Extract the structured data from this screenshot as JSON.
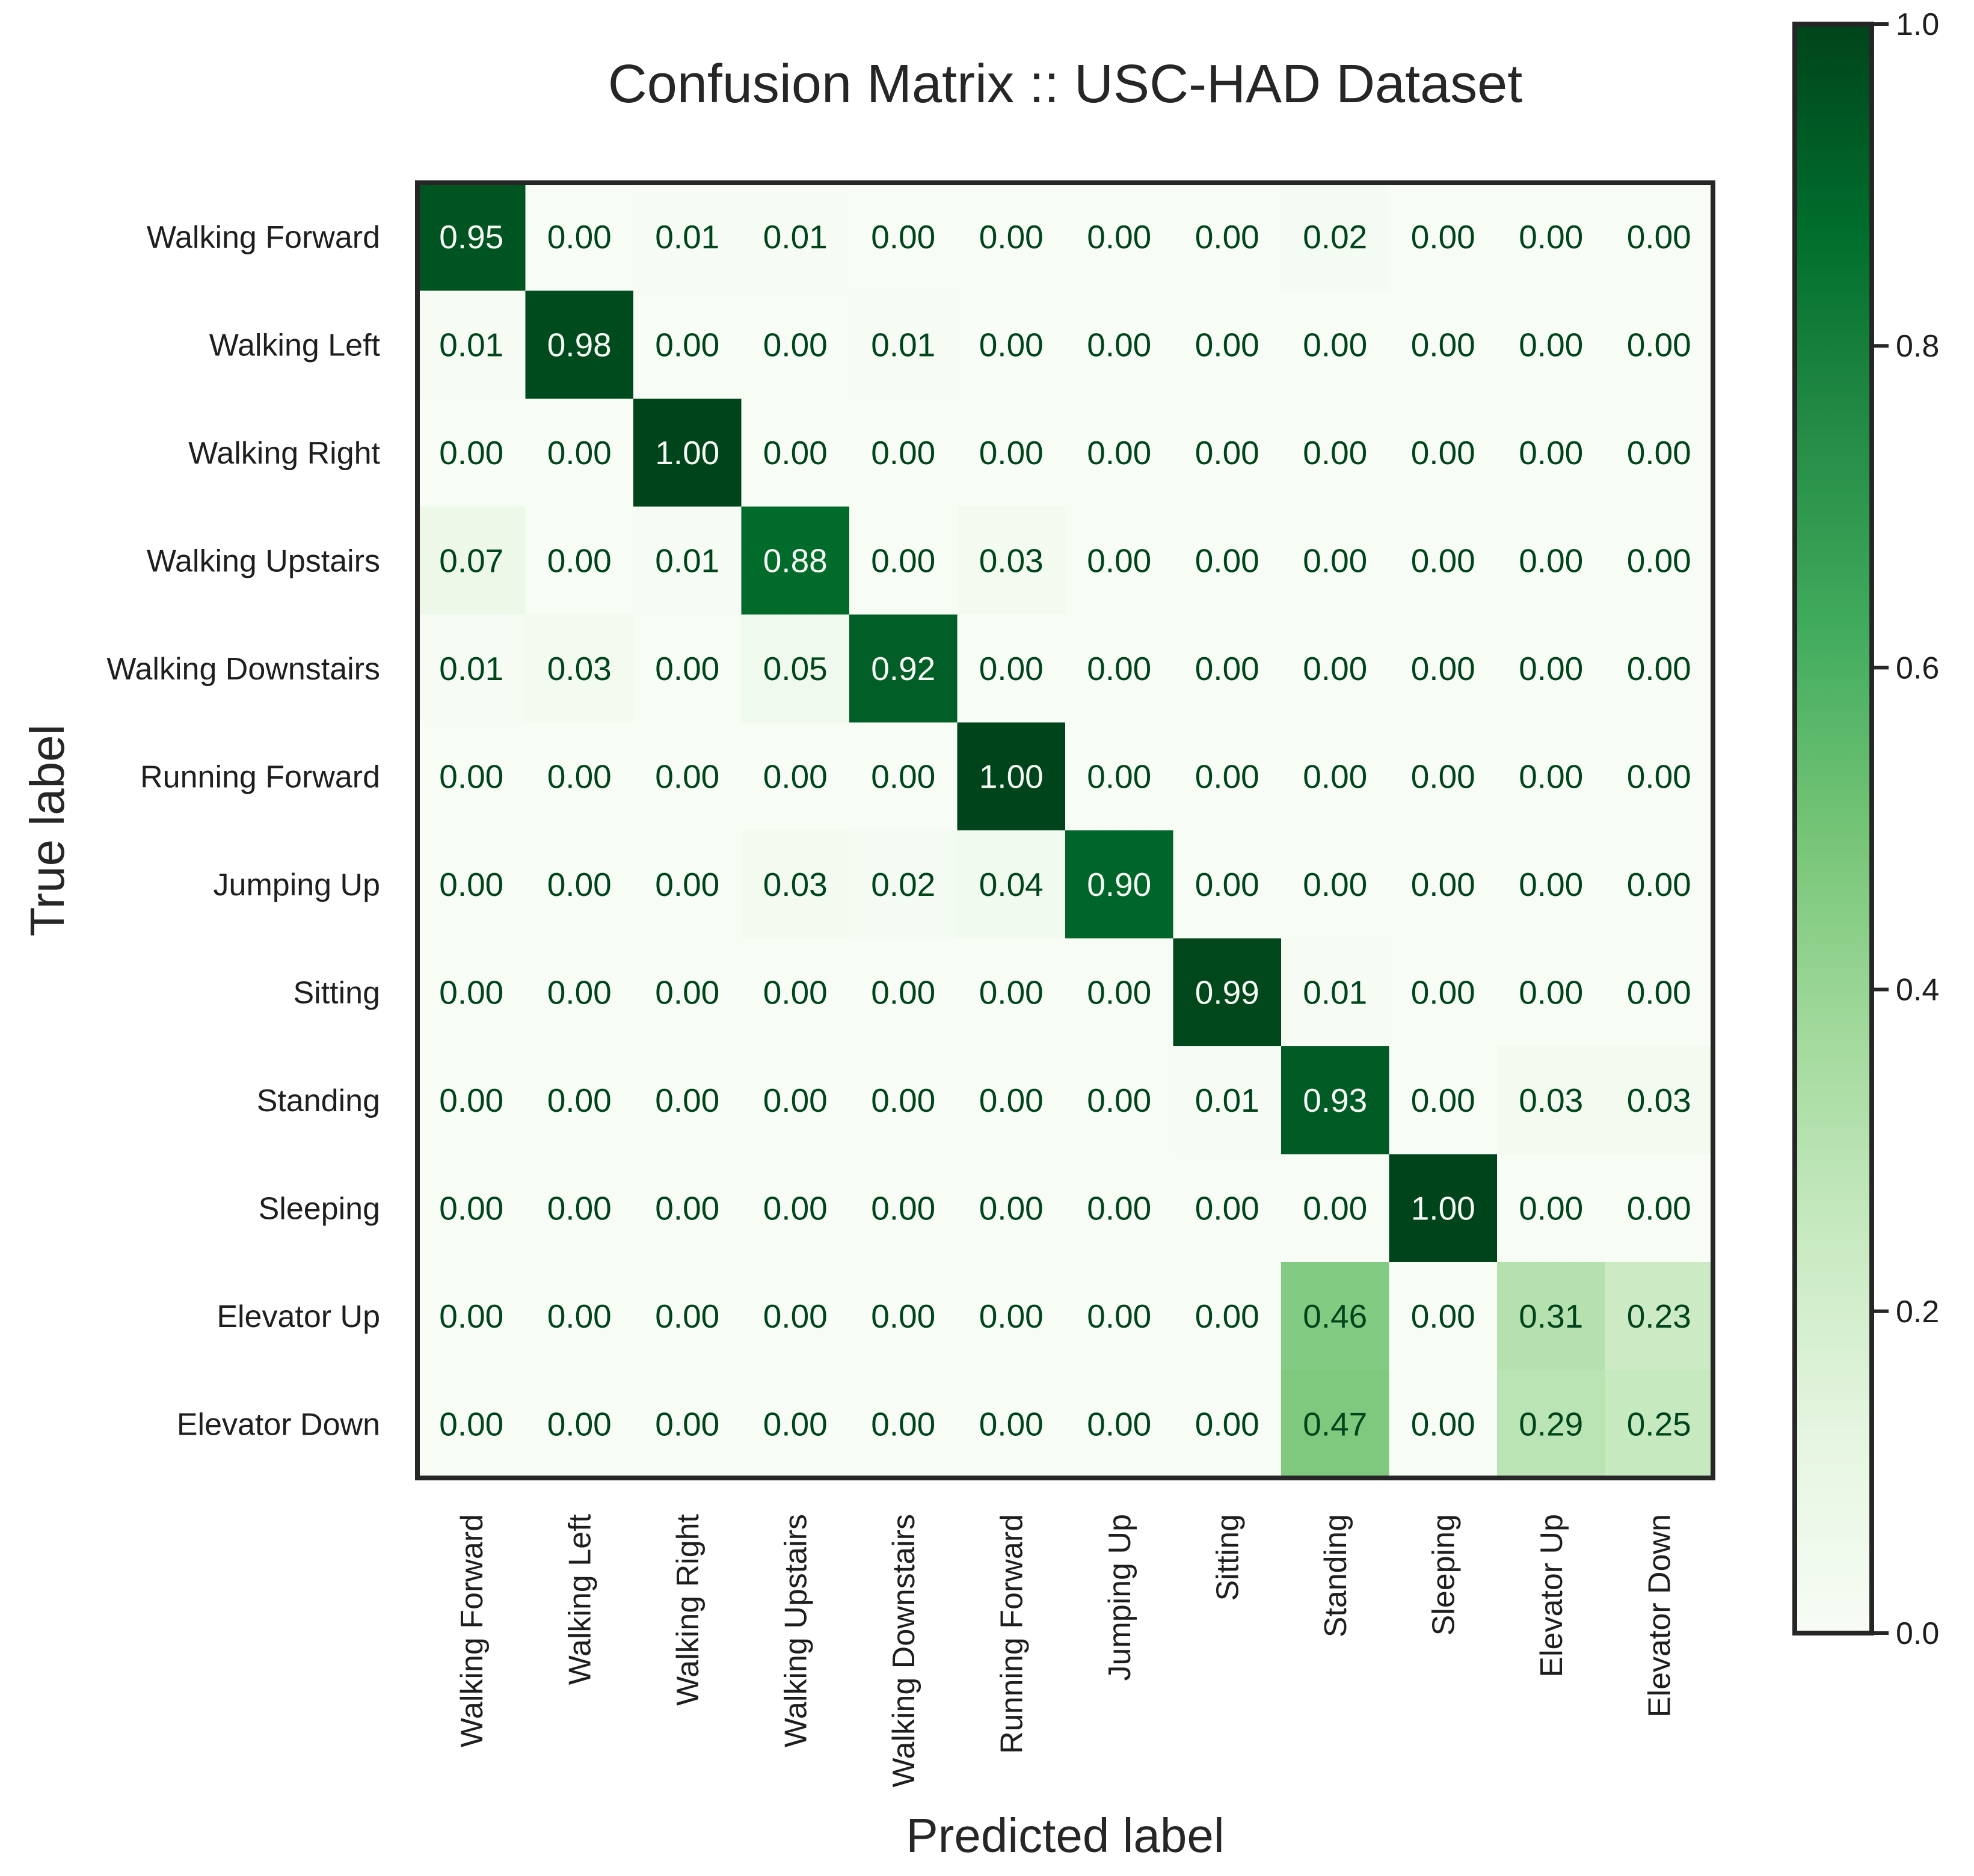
{
  "chart_data": {
    "type": "heatmap",
    "title": "Confusion Matrix :: USC-HAD Dataset",
    "xlabel": "Predicted label",
    "ylabel": "True label",
    "labels": [
      "Walking Forward",
      "Walking Left",
      "Walking Right",
      "Walking Upstairs",
      "Walking Downstairs",
      "Running Forward",
      "Jumping Up",
      "Sitting",
      "Standing",
      "Sleeping",
      "Elevator Up",
      "Elevator Down"
    ],
    "matrix": [
      [
        0.95,
        0.0,
        0.01,
        0.01,
        0.0,
        0.0,
        0.0,
        0.0,
        0.02,
        0.0,
        0.0,
        0.0
      ],
      [
        0.01,
        0.98,
        0.0,
        0.0,
        0.01,
        0.0,
        0.0,
        0.0,
        0.0,
        0.0,
        0.0,
        0.0
      ],
      [
        0.0,
        0.0,
        1.0,
        0.0,
        0.0,
        0.0,
        0.0,
        0.0,
        0.0,
        0.0,
        0.0,
        0.0
      ],
      [
        0.07,
        0.0,
        0.01,
        0.88,
        0.0,
        0.03,
        0.0,
        0.0,
        0.0,
        0.0,
        0.0,
        0.0
      ],
      [
        0.01,
        0.03,
        0.0,
        0.05,
        0.92,
        0.0,
        0.0,
        0.0,
        0.0,
        0.0,
        0.0,
        0.0
      ],
      [
        0.0,
        0.0,
        0.0,
        0.0,
        0.0,
        1.0,
        0.0,
        0.0,
        0.0,
        0.0,
        0.0,
        0.0
      ],
      [
        0.0,
        0.0,
        0.0,
        0.03,
        0.02,
        0.04,
        0.9,
        0.0,
        0.0,
        0.0,
        0.0,
        0.0
      ],
      [
        0.0,
        0.0,
        0.0,
        0.0,
        0.0,
        0.0,
        0.0,
        0.99,
        0.01,
        0.0,
        0.0,
        0.0
      ],
      [
        0.0,
        0.0,
        0.0,
        0.0,
        0.0,
        0.0,
        0.0,
        0.01,
        0.93,
        0.0,
        0.03,
        0.03
      ],
      [
        0.0,
        0.0,
        0.0,
        0.0,
        0.0,
        0.0,
        0.0,
        0.0,
        0.0,
        1.0,
        0.0,
        0.0
      ],
      [
        0.0,
        0.0,
        0.0,
        0.0,
        0.0,
        0.0,
        0.0,
        0.0,
        0.46,
        0.0,
        0.31,
        0.23
      ],
      [
        0.0,
        0.0,
        0.0,
        0.0,
        0.0,
        0.0,
        0.0,
        0.0,
        0.47,
        0.0,
        0.29,
        0.25
      ]
    ],
    "value_format": "0.00",
    "colorbar": {
      "range": [
        0.0,
        1.0
      ],
      "ticks": [
        "0.0",
        "0.2",
        "0.4",
        "0.6",
        "0.8",
        "1.0"
      ],
      "colormap": "Greens"
    },
    "colors": {
      "text_dark": "#1e1e1e",
      "cell_text_dark": "#00441b",
      "cell_text_light": "#f7fcf5",
      "frame": "#262626"
    }
  }
}
